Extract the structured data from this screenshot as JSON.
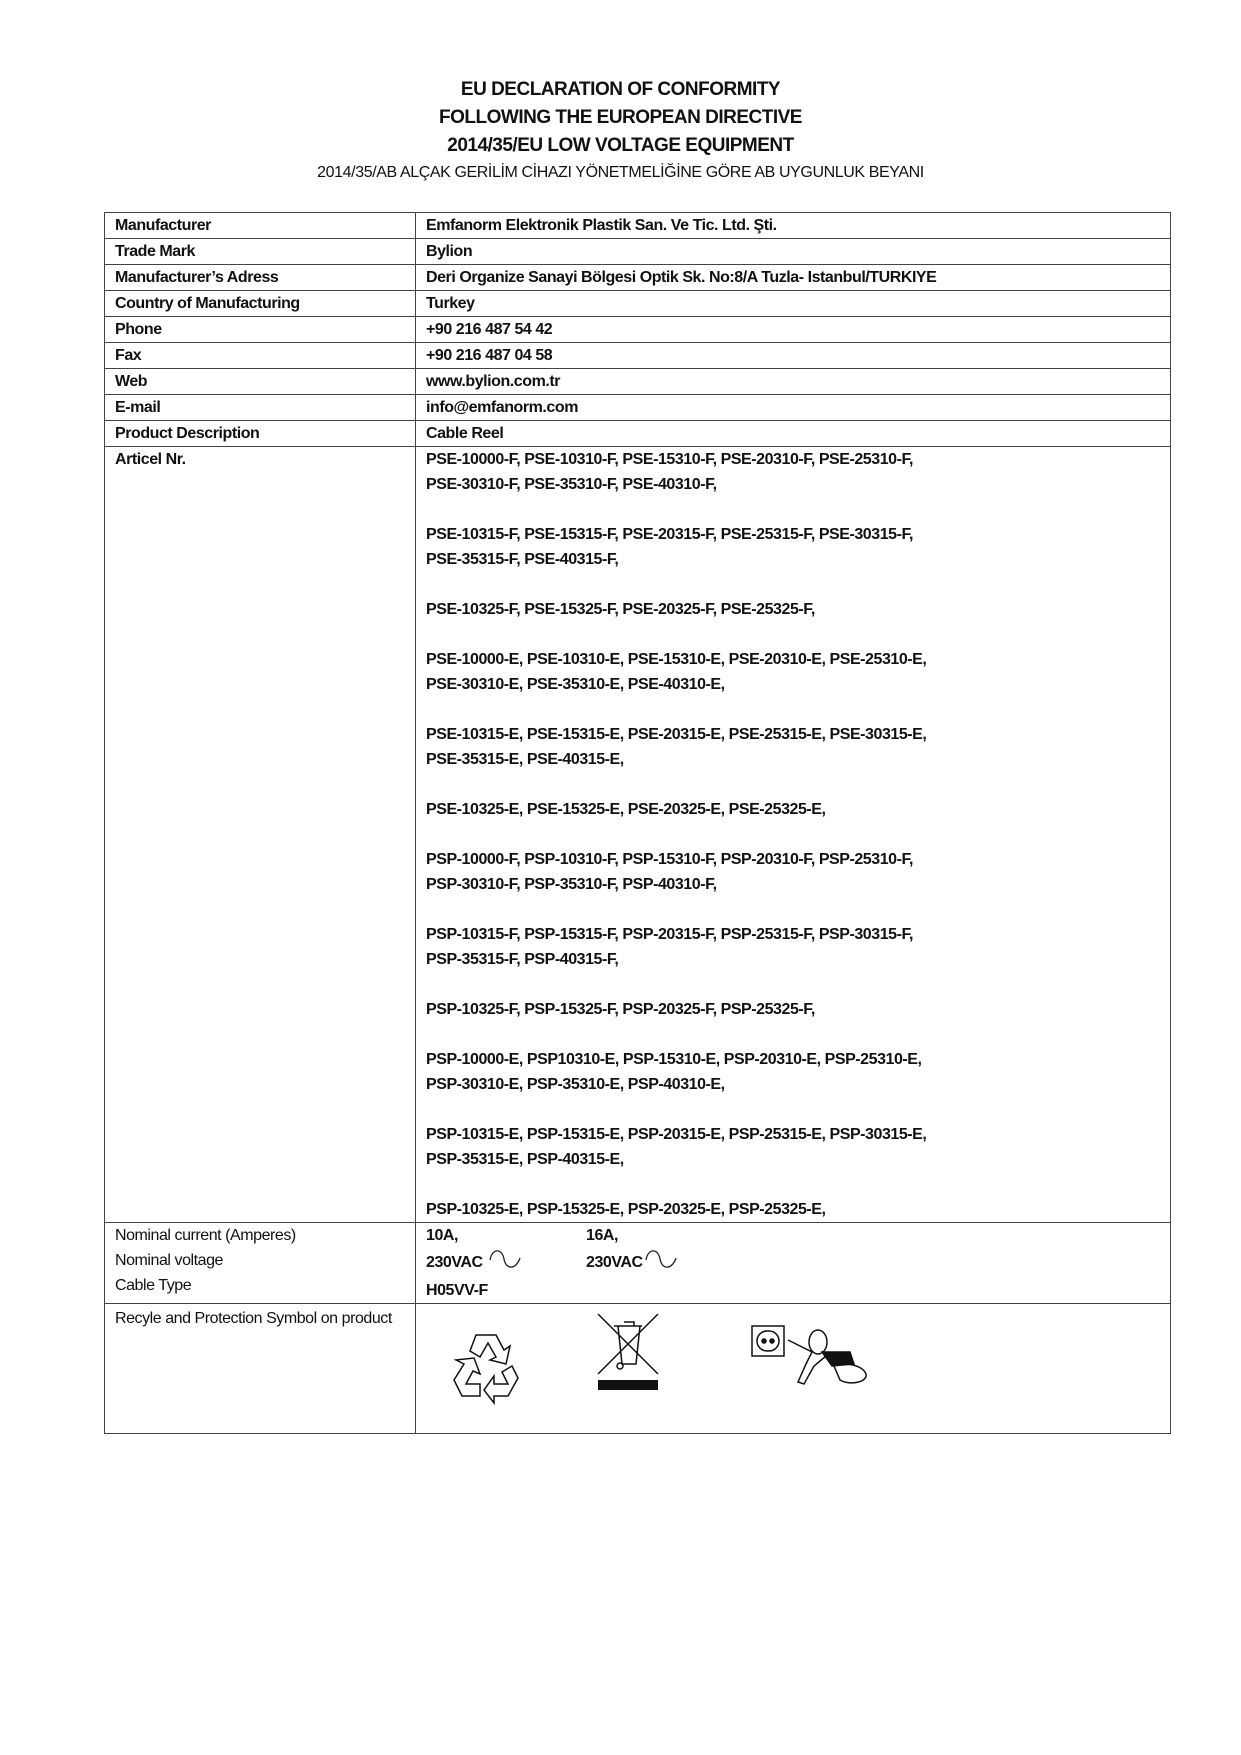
{
  "header": {
    "title_lines": [
      "EU DECLARATION OF CONFORMITY",
      "FOLLOWING THE EUROPEAN DIRECTIVE",
      "2014/35/EU LOW VOLTAGE EQUIPMENT"
    ],
    "subtitle": "2014/35/AB ALÇAK GERİLİM CİHAZI YÖNETMELİĞİNE GÖRE AB UYGUNLUK BEYANI"
  },
  "rows": [
    {
      "label": "Manufacturer",
      "value": "Emfanorm Elektronik Plastik San. Ve Tic. Ltd. Şti."
    },
    {
      "label": "Trade Mark",
      "value": "Bylion"
    },
    {
      "label": "Manufacturer’s Adress",
      "value": "Deri Organize Sanayi Bölgesi Optik Sk. No:8/A Tuzla- Istanbul/TURKIYE"
    },
    {
      "label": "Country of Manufacturing",
      "value": "Turkey"
    },
    {
      "label": "Phone",
      "value": "+90 216 487 54 42"
    },
    {
      "label": "Fax",
      "value": "+90 216 487 04 58"
    },
    {
      "label": "Web",
      "value": "www.bylion.com.tr"
    },
    {
      "label": "E-mail",
      "value": "info@emfanorm.com"
    },
    {
      "label": "Product Description",
      "value": "Cable Reel"
    }
  ],
  "article": {
    "label": "Articel Nr.",
    "lines": [
      "PSE-10000-F, PSE-10310-F, PSE-15310-F, PSE-20310-F, PSE-25310-F,",
      "PSE-30310-F, PSE-35310-F, PSE-40310-F,",
      "",
      "PSE-10315-F, PSE-15315-F, PSE-20315-F, PSE-25315-F, PSE-30315-F,",
      "PSE-35315-F, PSE-40315-F,",
      "",
      "PSE-10325-F, PSE-15325-F, PSE-20325-F, PSE-25325-F,",
      "",
      "PSE-10000-E, PSE-10310-E, PSE-15310-E, PSE-20310-E, PSE-25310-E,",
      "PSE-30310-E, PSE-35310-E, PSE-40310-E,",
      "",
      "PSE-10315-E, PSE-15315-E, PSE-20315-E, PSE-25315-E, PSE-30315-E,",
      "PSE-35315-E, PSE-40315-E,",
      "",
      "PSE-10325-E, PSE-15325-E, PSE-20325-E, PSE-25325-E,",
      "",
      "PSP-10000-F, PSP-10310-F, PSP-15310-F, PSP-20310-F, PSP-25310-F,",
      "PSP-30310-F, PSP-35310-F, PSP-40310-F,",
      "",
      "PSP-10315-F, PSP-15315-F, PSP-20315-F, PSP-25315-F, PSP-30315-F,",
      "PSP-35315-F, PSP-40315-F,",
      "",
      "PSP-10325-F, PSP-15325-F, PSP-20325-F, PSP-25325-F,",
      "",
      "PSP-10000-E, PSP10310-E, PSP-15310-E, PSP-20310-E, PSP-25310-E,",
      "PSP-30310-E, PSP-35310-E, PSP-40310-E,",
      "",
      "PSP-10315-E, PSP-15315-E, PSP-20315-E, PSP-25315-E, PSP-30315-E,",
      "PSP-35315-E, PSP-40315-E,",
      "",
      "PSP-10325-E, PSP-15325-E, PSP-20325-E, PSP-25325-E,"
    ]
  },
  "ratings": {
    "labels": [
      "Nominal current (Amperes)",
      "Nominal voltage",
      "Cable Type"
    ],
    "current_a": "10A,",
    "current_b": "16A,",
    "voltage_a": "230VAC",
    "voltage_b": "230VAC",
    "cable": "H05VV-F",
    "ac_icon": "sine-wave-icon"
  },
  "symbols": {
    "label": "Recyle and Protection Symbol on product",
    "icons": [
      "recycle-icon",
      "crossed-out-bin-icon",
      "child-socket-warning-icon"
    ]
  }
}
